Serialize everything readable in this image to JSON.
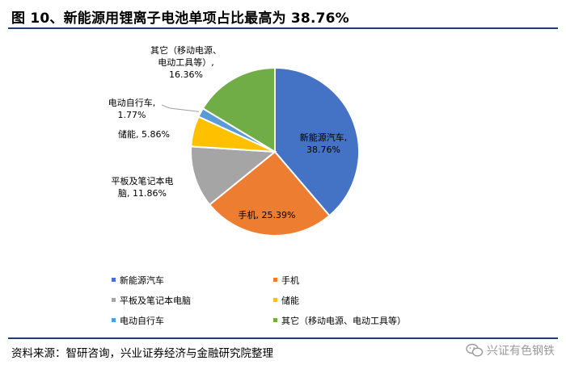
{
  "header": {
    "title": "图 10、新能源用锂离子电池单项占比最高为 38.76%"
  },
  "footer": {
    "source": "资料来源：智研咨询，兴业证券经济与金融研究院整理",
    "watermark": "兴证有色钢铁"
  },
  "chart_data": {
    "type": "pie",
    "title": "",
    "slices": [
      {
        "name": "新能源汽车",
        "value": 38.76,
        "color": "#4472c4",
        "label_lines": [
          "新能源汽车,",
          "38.76%"
        ]
      },
      {
        "name": "手机",
        "value": 25.39,
        "color": "#ed7d31",
        "label_lines": [
          "手机, 25.39%"
        ]
      },
      {
        "name": "平板及笔记本电脑",
        "value": 11.86,
        "color": "#a5a5a5",
        "label_lines": [
          "平板及笔记本电",
          "脑, 11.86%"
        ]
      },
      {
        "name": "储能",
        "value": 5.86,
        "color": "#ffc000",
        "label_lines": [
          "储能, 5.86%"
        ]
      },
      {
        "name": "电动自行车",
        "value": 1.77,
        "color": "#5b9bd5",
        "label_lines": [
          "电动自行车,",
          "1.77%"
        ]
      },
      {
        "name": "其它（移动电源、电动工具等）",
        "value": 16.36,
        "color": "#70ad47",
        "label_lines": [
          "其它（移动电源、",
          "电动工具等）,",
          "16.36%"
        ]
      }
    ],
    "legend": {
      "position": "bottom",
      "entries": [
        "新能源汽车",
        "手机",
        "平板及笔记本电脑",
        "储能",
        "电动自行车",
        "其它（移动电源、电动工具等）"
      ]
    }
  }
}
